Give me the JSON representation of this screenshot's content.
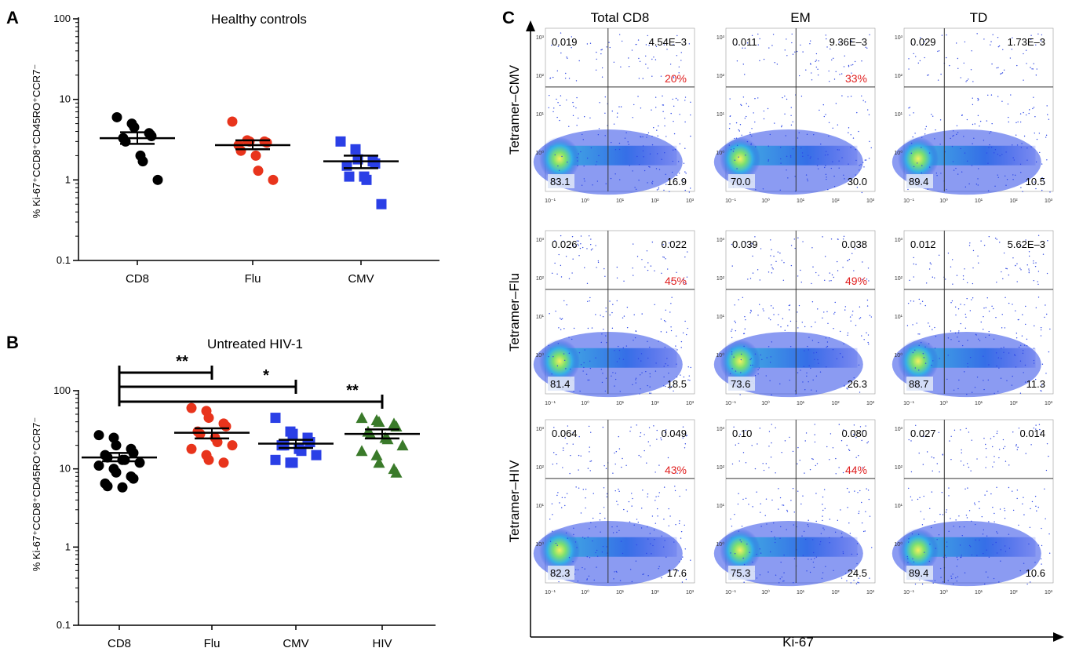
{
  "panels": {
    "A": "A",
    "B": "B",
    "C": "C"
  },
  "chart_data": [
    {
      "type": "scatter",
      "title": "Healthy controls",
      "ylabel": "% Ki-67⁺CCD8⁺CD45RO⁺CCR7⁻",
      "yscale": "log",
      "ylim": [
        0.1,
        100
      ],
      "yticks": [
        "0.1",
        "1",
        "10",
        "100"
      ],
      "categories": [
        "CD8",
        "Flu",
        "CMV"
      ],
      "series": [
        {
          "category": "CD8",
          "color": "#000000",
          "marker": "circle",
          "values": [
            6.0,
            5.0,
            4.5,
            3.8,
            3.5,
            3.3,
            3.0,
            2.0,
            1.7,
            1.0
          ],
          "mean": 3.3,
          "sem": [
            2.8,
            3.9
          ]
        },
        {
          "category": "Flu",
          "color": "#e8341c",
          "marker": "circle",
          "values": [
            5.3,
            3.1,
            3.0,
            3.0,
            2.9,
            2.7,
            2.3,
            2.0,
            1.3,
            1.0
          ],
          "mean": 2.7,
          "sem": [
            2.4,
            3.1
          ]
        },
        {
          "category": "CMV",
          "color": "#2a3fe6",
          "marker": "square",
          "values": [
            3.0,
            2.4,
            1.8,
            1.7,
            1.6,
            1.5,
            1.1,
            1.1,
            1.0,
            0.5
          ],
          "mean": 1.7,
          "sem": [
            1.4,
            2.0
          ]
        }
      ]
    },
    {
      "type": "scatter",
      "title": "Untreated HIV-1",
      "ylabel": "% Ki-67⁺CCD8⁺CD45RO⁺CCR7⁻",
      "yscale": "log",
      "ylim": [
        0.1,
        100
      ],
      "yticks": [
        "0.1",
        "1",
        "10",
        "100"
      ],
      "categories": [
        "CD8",
        "Flu",
        "CMV",
        "HIV"
      ],
      "series": [
        {
          "category": "CD8",
          "color": "#000000",
          "marker": "circle",
          "values": [
            27,
            25,
            20,
            18,
            16,
            15,
            14,
            13,
            13,
            12,
            11,
            10,
            9,
            8,
            7.5,
            6.5,
            6,
            5.8
          ],
          "mean": 14,
          "sem": [
            12.5,
            16
          ]
        },
        {
          "category": "Flu",
          "color": "#e8341c",
          "marker": "circle",
          "values": [
            60,
            55,
            45,
            38,
            35,
            30,
            28,
            25,
            22,
            20,
            18,
            15,
            13,
            12
          ],
          "mean": 29,
          "sem": [
            24.5,
            33
          ]
        },
        {
          "category": "CMV",
          "color": "#2a3fe6",
          "marker": "square",
          "values": [
            45,
            30,
            28,
            25,
            22,
            20,
            20,
            18,
            17,
            15,
            13,
            12,
            12
          ],
          "mean": 21,
          "sem": [
            18.5,
            23.5
          ]
        },
        {
          "category": "HIV",
          "color": "#3a7a2a",
          "marker": "triangle",
          "values": [
            45,
            42,
            40,
            38,
            35,
            30,
            28,
            25,
            24,
            20,
            17,
            15,
            12,
            10,
            9
          ],
          "mean": 28,
          "sem": [
            24.5,
            32
          ]
        }
      ],
      "significance": [
        {
          "from": "CD8",
          "to": "Flu",
          "label": "**"
        },
        {
          "from": "CD8",
          "to": "CMV",
          "label": "*"
        },
        {
          "from": "CD8",
          "to": "HIV",
          "label": "**"
        }
      ]
    },
    {
      "type": "table",
      "title": "",
      "xlabel": "Ki-67",
      "columns": [
        "Total CD8",
        "EM",
        "TD"
      ],
      "rows": [
        "Tetramer–CMV",
        "Tetramer–Flu",
        "Tetramer–HIV"
      ],
      "tick_labels": [
        "10⁻¹",
        "10⁰",
        "10¹",
        "10²",
        "10³"
      ],
      "quadrants": [
        [
          {
            "ul": "0.019",
            "ur": "4.54E–3",
            "pct": "20%",
            "ll": "83.1",
            "lr": "16.9"
          },
          {
            "ul": "0.011",
            "ur": "9.36E–3",
            "pct": "33%",
            "ll": "70.0",
            "lr": "30.0"
          },
          {
            "ul": "0.029",
            "ur": "1.73E–3",
            "pct": "",
            "ll": "89.4",
            "lr": "10.5"
          }
        ],
        [
          {
            "ul": "0.026",
            "ur": "0.022",
            "pct": "45%",
            "ll": "81.4",
            "lr": "18.5"
          },
          {
            "ul": "0.039",
            "ur": "0.038",
            "pct": "49%",
            "ll": "73.6",
            "lr": "26.3"
          },
          {
            "ul": "0.012",
            "ur": "5.62E–3",
            "pct": "",
            "ll": "88.7",
            "lr": "11.3"
          }
        ],
        [
          {
            "ul": "0.064",
            "ur": "0.049",
            "pct": "43%",
            "ll": "82.3",
            "lr": "17.6"
          },
          {
            "ul": "0.10",
            "ur": "0.080",
            "pct": "44%",
            "ll": "75.3",
            "lr": "24.5"
          },
          {
            "ul": "0.027",
            "ur": "0.014",
            "pct": "",
            "ll": "89.4",
            "lr": "10.6"
          }
        ]
      ]
    }
  ]
}
